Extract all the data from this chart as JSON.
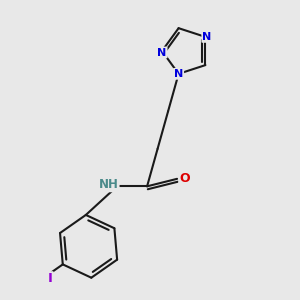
{
  "bg": "#e8e8e8",
  "bond_color": "#1a1a1a",
  "N_color": "#0000dd",
  "O_color": "#dd0000",
  "I_color": "#9400d3",
  "NH_color": "#4a8a8a",
  "figsize": [
    3.0,
    3.0
  ],
  "dpi": 100,
  "xlim": [
    0,
    10
  ],
  "ylim": [
    0,
    10
  ]
}
